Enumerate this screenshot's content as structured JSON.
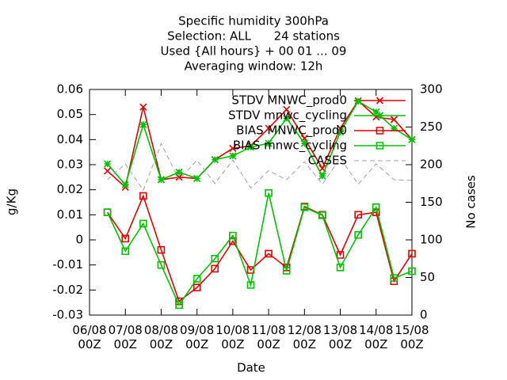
{
  "chart_data": {
    "type": "line",
    "title": [
      "Specific humidity 300hPa",
      "Selection: ALL      24 stations",
      "Used {All hours} + 00 01 ... 09",
      "Averaging window: 12h"
    ],
    "x_label": "Date",
    "y_label": "g/Kg",
    "y2_label": "No cases",
    "x": [
      6.5,
      7,
      7.5,
      8,
      8.5,
      9,
      9.5,
      10,
      10.5,
      11,
      11.5,
      12,
      12.5,
      13,
      13.5,
      14,
      14.5,
      15
    ],
    "xlim": [
      6,
      15
    ],
    "xticks": [
      {
        "value": 6,
        "label": "06/08\n00Z"
      },
      {
        "value": 7,
        "label": "07/08\n00Z"
      },
      {
        "value": 8,
        "label": "08/08\n00Z"
      },
      {
        "value": 9,
        "label": "09/08\n00Z"
      },
      {
        "value": 10,
        "label": "10/08\n00Z"
      },
      {
        "value": 11,
        "label": "11/08\n00Z"
      },
      {
        "value": 12,
        "label": "12/08\n00Z"
      },
      {
        "value": 13,
        "label": "13/08\n00Z"
      },
      {
        "value": 14,
        "label": "14/08\n00Z"
      },
      {
        "value": 15,
        "label": "15/08\n00Z"
      }
    ],
    "ylim": [
      -0.03,
      0.06
    ],
    "yticks": [
      -0.03,
      -0.02,
      -0.01,
      0,
      0.01,
      0.02,
      0.03,
      0.04,
      0.05,
      0.06
    ],
    "y2lim": [
      0,
      300
    ],
    "y2ticks": [
      0,
      50,
      100,
      150,
      200,
      250,
      300
    ],
    "legend": "top-right",
    "series": [
      {
        "name": "STDV MNWC_prod0",
        "color": "#e00000",
        "marker": "cross",
        "values": [
          0.0275,
          0.021,
          0.053,
          0.024,
          0.025,
          0.0245,
          0.032,
          0.0365,
          0.0375,
          0.0445,
          0.052,
          0.0405,
          0.0285,
          0.0445,
          0.0555,
          0.049,
          0.048,
          0.04
        ]
      },
      {
        "name": "STDV mnwc_cycling",
        "color": "#00c000",
        "marker": "star",
        "values": [
          0.0303,
          0.022,
          0.046,
          0.024,
          0.027,
          0.0245,
          0.032,
          0.0335,
          0.037,
          0.0385,
          0.0485,
          0.0385,
          0.0255,
          0.043,
          0.0553,
          0.051,
          0.0445,
          0.04
        ]
      },
      {
        "name": "BIAS MNWC_prod0",
        "color": "#e00000",
        "marker": "square",
        "values": [
          0.011,
          0.0005,
          0.0175,
          -0.004,
          -0.0245,
          -0.019,
          -0.0115,
          -0.0005,
          -0.012,
          -0.0055,
          -0.011,
          0.0133,
          0.01,
          -0.006,
          0.01,
          0.011,
          -0.0165,
          -0.0055
        ]
      },
      {
        "name": "BIAS mnwc_cycling",
        "color": "#00c000",
        "marker": "square",
        "values": [
          0.011,
          -0.0045,
          0.0065,
          -0.01,
          -0.026,
          -0.0155,
          -0.0075,
          0.0017,
          -0.018,
          0.0187,
          -0.0123,
          0.013,
          0.0098,
          -0.011,
          0.002,
          0.013,
          -0.0152,
          -0.0125
        ]
      },
      {
        "name": "CASES",
        "color": "#a0a0a0",
        "marker": "none",
        "dashed": true,
        "axis": "y2",
        "values": [
          180,
          201,
          166,
          228,
          180,
          206,
          175,
          206,
          169,
          192,
          180,
          204,
          174,
          209,
          174,
          201,
          180,
          179
        ]
      }
    ]
  }
}
